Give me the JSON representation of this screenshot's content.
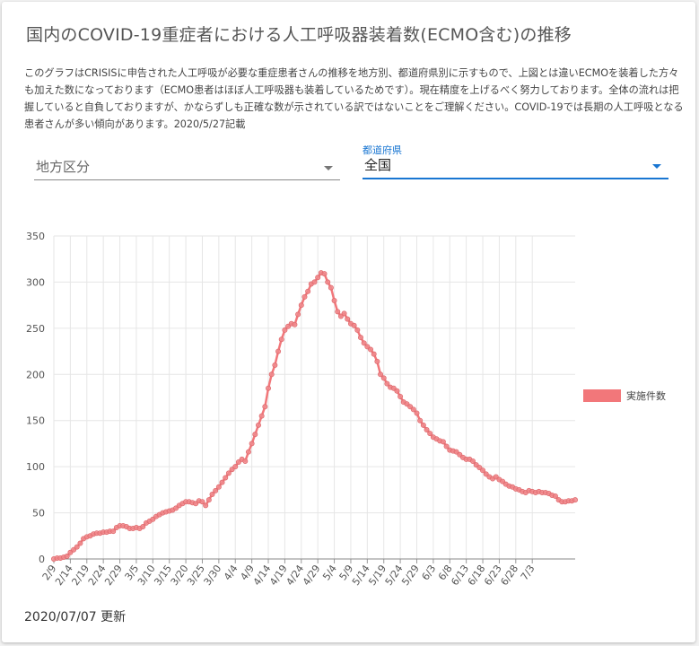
{
  "card": {
    "title": "国内のCOVID-19重症者における人工呼吸器装着数(ECMO含む)の推移",
    "description": "このグラフはCRISISに申告された人工呼吸が必要な重症患者さんの推移を地方別、都道府県別に示すもので、上図とは違いECMOを装着した方々も加えた数になっております（ECMO患者はほぼ人工呼吸器も装着しているためです）。現在精度を上げるべく努力しております。全体の流れは把握していると自負しておりますが、かならずしも正確な数が示されている訳ではないことをご理解ください。COVID-19では長期の人工呼吸となる患者さんが多い傾向があります。2020/5/27記載",
    "updated": "2020/07/07 更新"
  },
  "filters": {
    "region": {
      "value": "地方区分"
    },
    "prefecture": {
      "label": "都道府県",
      "value": "全国"
    }
  },
  "colors": {
    "series": "#f2777a",
    "marker": "#f08a8d",
    "accent": "#1976d2",
    "grid": "#e6e6e6"
  },
  "chart_data": {
    "type": "line",
    "ylim": [
      0,
      350
    ],
    "yticks": [
      0,
      50,
      100,
      150,
      200,
      250,
      300,
      350
    ],
    "xticks": [
      "2/9",
      "2/14",
      "2/19",
      "2/24",
      "2/29",
      "3/5",
      "3/10",
      "3/15",
      "3/20",
      "3/25",
      "3/30",
      "4/4",
      "4/9",
      "4/14",
      "4/19",
      "4/24",
      "4/29",
      "5/4",
      "5/9",
      "5/14",
      "5/19",
      "5/24",
      "5/29",
      "6/3",
      "6/8",
      "6/13",
      "6/18",
      "6/23",
      "6/28",
      "7/3"
    ],
    "legend": {
      "position": "right"
    },
    "grid": true,
    "x_start": "2/9",
    "series": [
      {
        "name": "実施件数",
        "values": [
          0,
          1,
          1,
          2,
          3,
          7,
          10,
          13,
          17,
          22,
          24,
          25,
          27,
          28,
          28,
          29,
          29,
          30,
          30,
          34,
          36,
          36,
          35,
          33,
          33,
          34,
          33,
          35,
          39,
          41,
          43,
          46,
          48,
          50,
          51,
          52,
          53,
          55,
          58,
          60,
          62,
          62,
          61,
          60,
          63,
          62,
          58,
          64,
          70,
          74,
          78,
          83,
          88,
          93,
          97,
          100,
          105,
          108,
          106,
          116,
          125,
          135,
          145,
          155,
          165,
          185,
          200,
          210,
          225,
          238,
          248,
          252,
          255,
          254,
          265,
          275,
          284,
          290,
          298,
          300,
          305,
          310,
          309,
          300,
          294,
          280,
          268,
          263,
          266,
          260,
          255,
          253,
          248,
          240,
          234,
          230,
          227,
          222,
          214,
          200,
          196,
          190,
          186,
          185,
          182,
          176,
          170,
          168,
          165,
          162,
          158,
          150,
          145,
          140,
          136,
          132,
          130,
          128,
          127,
          122,
          118,
          117,
          116,
          113,
          110,
          108,
          108,
          106,
          102,
          99,
          96,
          92,
          89,
          87,
          89,
          86,
          84,
          81,
          79,
          78,
          76,
          75,
          73,
          72,
          74,
          73,
          72,
          73,
          72,
          72,
          71,
          69,
          68,
          64,
          62,
          62,
          63,
          63,
          64
        ]
      }
    ]
  }
}
